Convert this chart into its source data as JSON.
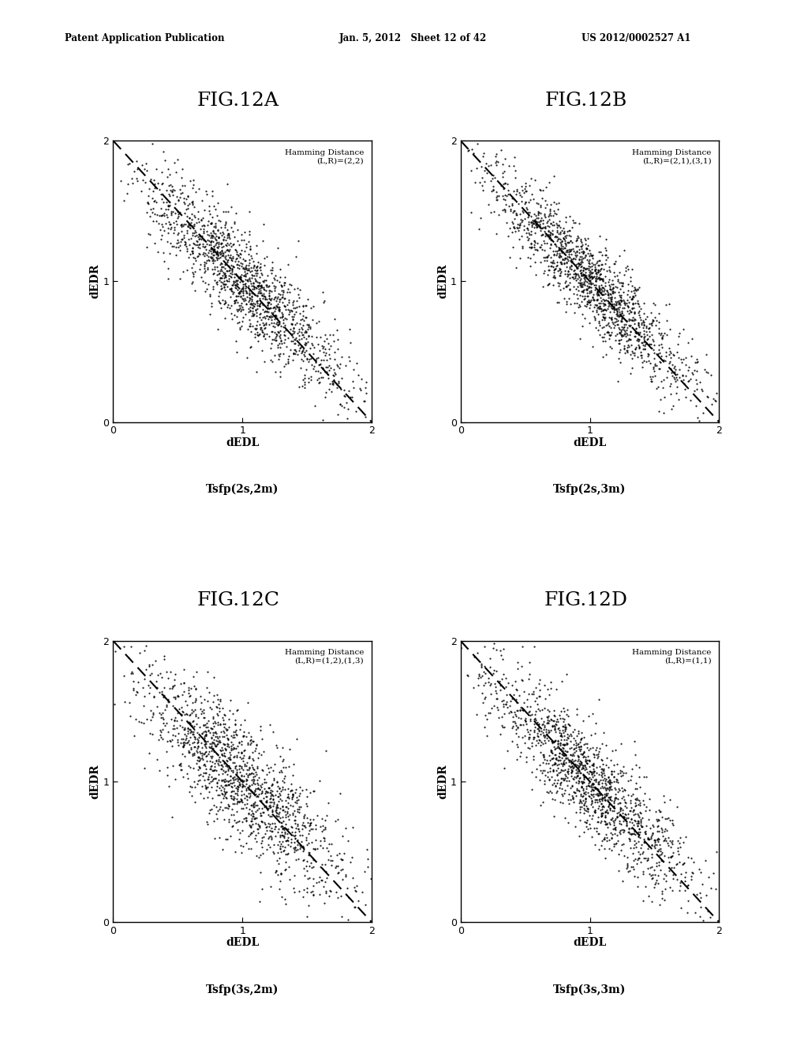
{
  "panels": [
    {
      "title": "FIG.12A",
      "hamming_label": "Hamming Distance\n(L,R)=(2,2)",
      "xlabel1": "dEDL",
      "xlabel2": "Tsfp(2s,2m)",
      "ylabel": "dEDR",
      "seed": 42,
      "n_points": 1500,
      "spread_perp": 0.13,
      "spread_along": 0.55
    },
    {
      "title": "FIG.12B",
      "hamming_label": "Hamming Distance\n(L,R)=(2,1),(3,1)",
      "xlabel1": "dEDL",
      "xlabel2": "Tsfp(2s,3m)",
      "ylabel": "dEDR",
      "seed": 43,
      "n_points": 1500,
      "spread_perp": 0.11,
      "spread_along": 0.55
    },
    {
      "title": "FIG.12C",
      "hamming_label": "Hamming Distance\n(L,R)=(1,2),(1,3)",
      "xlabel1": "dEDL",
      "xlabel2": "Tsfp(3s,2m)",
      "ylabel": "dEDR",
      "seed": 44,
      "n_points": 1500,
      "spread_perp": 0.16,
      "spread_along": 0.55
    },
    {
      "title": "FIG.12D",
      "hamming_label": "Hamming Distance\n(L,R)=(1,1)",
      "xlabel1": "dEDL",
      "xlabel2": "Tsfp(3s,3m)",
      "ylabel": "dEDR",
      "seed": 45,
      "n_points": 1500,
      "spread_perp": 0.13,
      "spread_along": 0.55
    }
  ],
  "header_left": "Patent Application Publication",
  "header_mid": "Jan. 5, 2012   Sheet 12 of 42",
  "header_right": "US 2012/0002527 A1",
  "bg_color": "#ffffff",
  "dot_color": "#000000",
  "dot_size": 2.5,
  "dot_alpha": 0.9,
  "dashed_line_color": "#000000",
  "xlim": [
    0,
    2
  ],
  "ylim": [
    0,
    2
  ],
  "xticks": [
    0,
    1,
    2
  ],
  "yticks": [
    0,
    1,
    2
  ]
}
